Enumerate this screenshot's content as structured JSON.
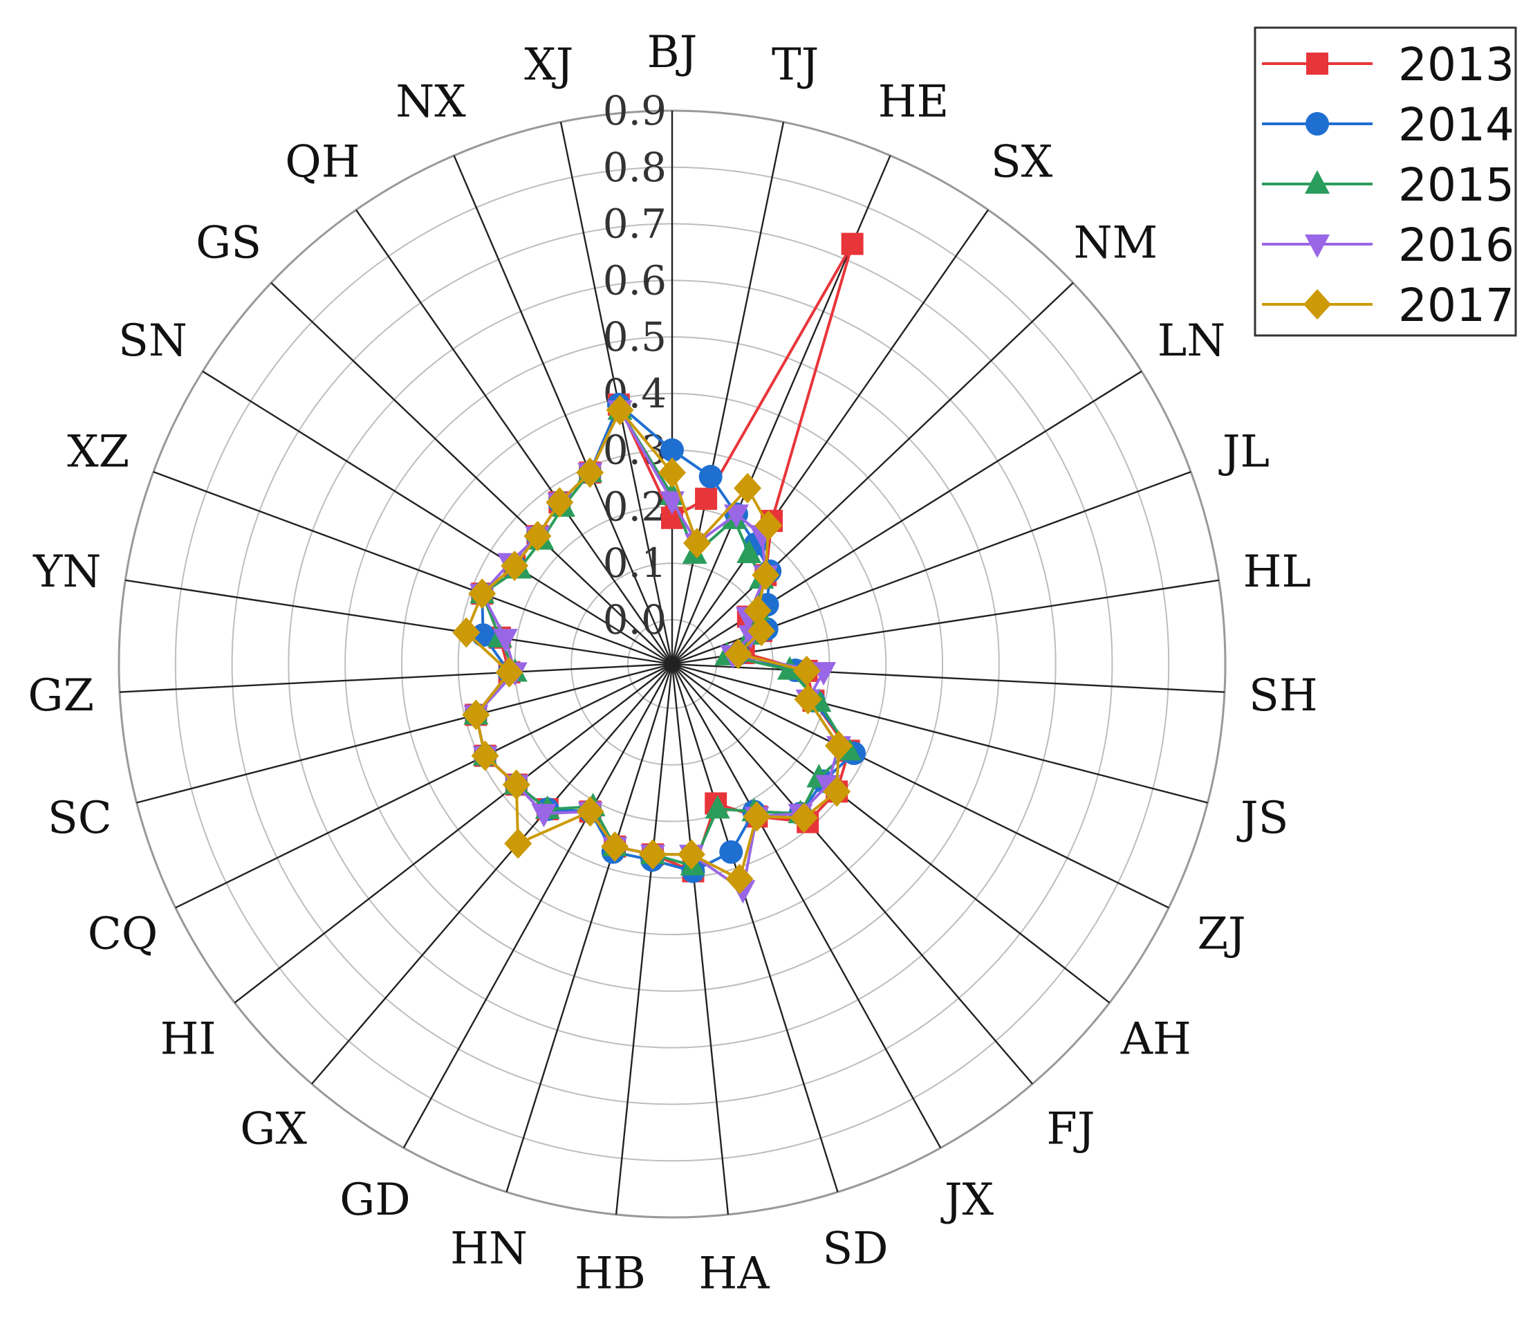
{
  "chart_data": {
    "type": "radar",
    "categories": [
      "BJ",
      "TJ",
      "HE",
      "SX",
      "NM",
      "LN",
      "JL",
      "HL",
      "SH",
      "JS",
      "ZJ",
      "AH",
      "FJ",
      "JX",
      "SD",
      "HA",
      "HB",
      "HN",
      "GD",
      "GX",
      "HI",
      "CQ",
      "SC",
      "GZ",
      "YN",
      "XZ",
      "SN",
      "GS",
      "QH",
      "NX",
      "XJ"
    ],
    "radial_ticks": [
      "0.0",
      "0.1",
      "0.2",
      "0.3",
      "0.4",
      "0.5",
      "0.6",
      "0.7",
      "0.8",
      "0.9"
    ],
    "rlim": [
      0,
      0.9
    ],
    "legend_position": "top-right",
    "series": [
      {
        "name": "2013",
        "color": "#e8353a",
        "marker": "square",
        "values": [
          0.18,
          0.22,
          0.73,
          0.23,
          0.15,
          0.08,
          0.09,
          0.05,
          0.16,
          0.18,
          0.27,
          0.29,
          0.29,
          0.23,
          0.18,
          0.29,
          0.26,
          0.26,
          0.22,
          0.26,
          0.27,
          0.29,
          0.28,
          0.21,
          0.23,
          0.28,
          0.25,
          0.25,
          0.27,
          0.29,
          0.39
        ]
      },
      {
        "name": "2014",
        "color": "#1f6fd1",
        "marker": "circle",
        "values": [
          0.3,
          0.26,
          0.21,
          0.18,
          0.16,
          0.12,
          0.1,
          0.04,
          0.14,
          0.18,
          0.28,
          0.26,
          0.27,
          0.22,
          0.27,
          0.29,
          0.27,
          0.27,
          0.22,
          0.26,
          0.27,
          0.29,
          0.28,
          0.21,
          0.26,
          0.28,
          0.25,
          0.25,
          0.27,
          0.29,
          0.39
        ]
      },
      {
        "name": "2015",
        "color": "#2a9d5c",
        "marker": "triangle-up",
        "values": [
          0.22,
          0.12,
          0.2,
          0.16,
          0.14,
          0.1,
          0.07,
          0.02,
          0.13,
          0.19,
          0.27,
          0.25,
          0.27,
          0.22,
          0.19,
          0.28,
          0.26,
          0.26,
          0.21,
          0.26,
          0.27,
          0.29,
          0.28,
          0.2,
          0.23,
          0.28,
          0.24,
          0.24,
          0.26,
          0.29,
          0.38
        ]
      },
      {
        "name": "2016",
        "color": "#9966e6",
        "marker": "triangle-down",
        "values": [
          0.21,
          0.14,
          0.21,
          0.2,
          0.15,
          0.08,
          0.07,
          0.03,
          0.19,
          0.17,
          0.25,
          0.27,
          0.27,
          0.23,
          0.34,
          0.26,
          0.26,
          0.26,
          0.22,
          0.27,
          0.27,
          0.29,
          0.28,
          0.2,
          0.22,
          0.28,
          0.26,
          0.25,
          0.27,
          0.29,
          0.38
        ]
      },
      {
        "name": "2017",
        "color": "#cc9a06",
        "marker": "diamond",
        "values": [
          0.26,
          0.14,
          0.26,
          0.22,
          0.15,
          0.1,
          0.09,
          0.04,
          0.16,
          0.17,
          0.25,
          0.29,
          0.28,
          0.23,
          0.32,
          0.26,
          0.26,
          0.26,
          0.22,
          0.34,
          0.27,
          0.29,
          0.28,
          0.21,
          0.29,
          0.28,
          0.25,
          0.25,
          0.27,
          0.29,
          0.38
        ]
      }
    ]
  }
}
